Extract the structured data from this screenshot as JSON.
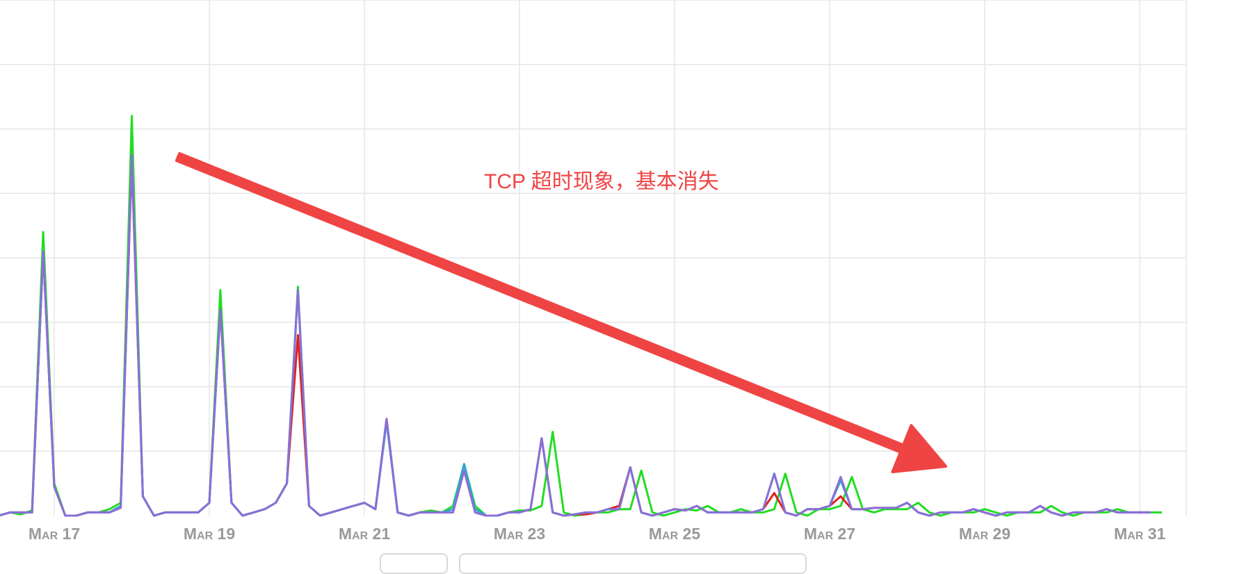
{
  "chart_data": {
    "type": "line",
    "title": "",
    "xlabel": "",
    "ylabel": "",
    "x_ticks": [
      "Mar 17",
      "Mar 19",
      "Mar 21",
      "Mar 23",
      "Mar 25",
      "Mar 27",
      "Mar 29",
      "Mar 31"
    ],
    "grid": true,
    "legend": "none",
    "ylim": [
      0,
      8
    ],
    "y_gridlines": [
      0,
      1,
      2,
      3,
      4,
      5,
      6,
      7,
      8
    ],
    "series": [
      {
        "color": "#22dd22",
        "values": [
          0.0,
          0.05,
          0.02,
          0.08,
          4.4,
          0.5,
          0.0,
          0.0,
          0.05,
          0.05,
          0.1,
          0.2,
          6.2,
          0.3,
          0.0,
          0.05,
          0.05,
          0.05,
          0.05,
          0.2,
          3.5,
          0.2,
          0.0,
          0.05,
          0.1,
          0.2,
          0.5,
          3.55,
          0.15,
          0.0,
          0.05,
          0.1,
          0.15,
          0.2,
          0.1,
          1.5,
          0.05,
          0.0,
          0.05,
          0.08,
          0.05,
          0.15,
          0.8,
          0.15,
          0.0,
          0.0,
          0.05,
          0.08,
          0.08,
          0.15,
          1.3,
          0.05,
          0.0,
          0.02,
          0.05,
          0.05,
          0.1,
          0.1,
          0.7,
          0.05,
          0.0,
          0.05,
          0.1,
          0.08,
          0.15,
          0.05,
          0.05,
          0.1,
          0.05,
          0.05,
          0.1,
          0.65,
          0.05,
          0.0,
          0.1,
          0.1,
          0.15,
          0.6,
          0.1,
          0.05,
          0.1,
          0.1,
          0.1,
          0.2,
          0.05,
          0.0,
          0.05,
          0.05,
          0.05,
          0.1,
          0.05,
          0.0,
          0.05,
          0.05,
          0.05,
          0.15,
          0.05,
          0.0,
          0.05,
          0.05,
          0.05,
          0.1,
          0.05,
          0.05,
          0.05,
          0.05
        ]
      },
      {
        "color": "#e02020",
        "values": [
          0.0,
          0.05,
          0.05,
          0.05,
          4.1,
          0.45,
          0.0,
          0.0,
          0.05,
          0.05,
          0.05,
          0.15,
          5.5,
          0.3,
          0.0,
          0.05,
          0.05,
          0.05,
          0.05,
          0.2,
          3.2,
          0.2,
          0.0,
          0.05,
          0.1,
          0.2,
          0.5,
          2.8,
          0.15,
          0.0,
          0.05,
          0.1,
          0.15,
          0.2,
          0.1,
          1.5,
          0.05,
          0.0,
          0.05,
          0.05,
          0.05,
          0.05,
          0.7,
          0.05,
          0.0,
          0.0,
          0.05,
          0.05,
          0.1,
          1.2,
          0.05,
          0.0,
          0.02,
          0.02,
          0.05,
          0.1,
          0.15,
          0.75,
          0.05,
          0.0,
          0.05,
          0.1,
          0.08,
          0.15,
          0.05,
          0.05,
          0.05,
          0.05,
          0.05,
          0.1,
          0.35,
          0.05,
          0.0,
          0.1,
          0.1,
          0.15,
          0.3,
          0.1,
          0.1,
          0.12,
          0.12,
          0.12,
          0.2,
          0.05,
          0.0,
          0.05,
          0.05,
          0.05,
          0.1,
          0.05,
          0.0,
          0.05,
          0.05,
          0.05,
          0.15,
          0.05,
          0.0,
          0.05,
          0.05,
          0.05,
          0.1,
          0.05,
          0.05,
          0.05,
          0.05
        ]
      },
      {
        "color": "#2aa7d8",
        "values": [
          0.0,
          0.05,
          0.05,
          0.05,
          4.1,
          0.45,
          0.0,
          0.0,
          0.05,
          0.05,
          0.05,
          0.15,
          5.6,
          0.3,
          0.0,
          0.05,
          0.05,
          0.05,
          0.05,
          0.2,
          3.2,
          0.2,
          0.0,
          0.05,
          0.1,
          0.2,
          0.5,
          3.5,
          0.15,
          0.0,
          0.05,
          0.1,
          0.15,
          0.2,
          0.1,
          1.45,
          0.05,
          0.0,
          0.05,
          0.05,
          0.05,
          0.1,
          0.8,
          0.1,
          0.0,
          0.0,
          0.05,
          0.05,
          0.1,
          1.2,
          0.05,
          0.0,
          0.02,
          0.05,
          0.05,
          0.1,
          0.1,
          0.75,
          0.05,
          0.0,
          0.05,
          0.1,
          0.08,
          0.15,
          0.05,
          0.05,
          0.05,
          0.05,
          0.05,
          0.1,
          0.65,
          0.05,
          0.0,
          0.1,
          0.1,
          0.15,
          0.55,
          0.1,
          0.1,
          0.12,
          0.12,
          0.12,
          0.2,
          0.05,
          0.0,
          0.05,
          0.05,
          0.05,
          0.1,
          0.05,
          0.0,
          0.05,
          0.05,
          0.05,
          0.15,
          0.05,
          0.0,
          0.05,
          0.05,
          0.05,
          0.1,
          0.05,
          0.05,
          0.05,
          0.05
        ]
      },
      {
        "color": "#8a6fd8",
        "values": [
          0.0,
          0.05,
          0.05,
          0.05,
          4.1,
          0.45,
          0.0,
          0.0,
          0.05,
          0.05,
          0.05,
          0.12,
          5.6,
          0.3,
          0.0,
          0.05,
          0.05,
          0.05,
          0.05,
          0.2,
          3.2,
          0.2,
          0.0,
          0.05,
          0.1,
          0.2,
          0.5,
          3.5,
          0.15,
          0.0,
          0.05,
          0.1,
          0.15,
          0.2,
          0.1,
          1.5,
          0.05,
          0.0,
          0.05,
          0.05,
          0.05,
          0.05,
          0.7,
          0.05,
          0.0,
          0.0,
          0.05,
          0.05,
          0.1,
          1.2,
          0.05,
          0.0,
          0.02,
          0.05,
          0.05,
          0.1,
          0.1,
          0.75,
          0.05,
          0.0,
          0.05,
          0.1,
          0.08,
          0.15,
          0.05,
          0.05,
          0.05,
          0.05,
          0.05,
          0.1,
          0.65,
          0.05,
          0.0,
          0.1,
          0.1,
          0.15,
          0.6,
          0.1,
          0.1,
          0.12,
          0.12,
          0.12,
          0.2,
          0.05,
          0.0,
          0.05,
          0.05,
          0.05,
          0.1,
          0.05,
          0.0,
          0.05,
          0.05,
          0.05,
          0.15,
          0.05,
          0.0,
          0.05,
          0.05,
          0.05,
          0.1,
          0.05,
          0.05,
          0.05,
          0.05
        ]
      }
    ],
    "annotations": [
      {
        "text": "TCP 超时现象，基本消失",
        "color": "#ef4444",
        "arrow": "down-right"
      }
    ]
  },
  "colors": {
    "grid": "#e6e6e6",
    "tick_text": "#999999",
    "annotation": "#ef4444",
    "control_border": "#d9d9d9"
  }
}
